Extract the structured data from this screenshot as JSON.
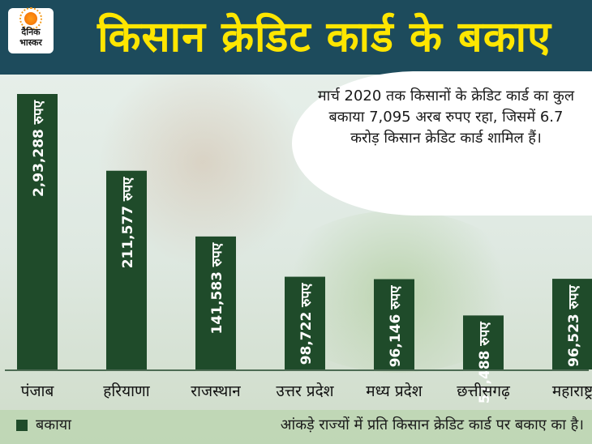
{
  "header": {
    "title": "किसान क्रेडिट कार्ड के बकाए",
    "logo_line1": "दैनिक",
    "logo_line2": "भास्कर"
  },
  "note": {
    "text": "मार्च 2020 तक किसानों के क्रेडिट कार्ड का कुल बकाया 7,095 अरब रुपए रहा, जिसमें 6.7 करोड़ किसान क्रेडिट कार्ड शामिल हैं।"
  },
  "colors": {
    "bar": "#1f4b2a",
    "header_bg": "#1d4b5c",
    "title": "#ffe600"
  },
  "chart_data": {
    "type": "bar",
    "title": "किसान क्रेडिट कार्ड के बकाए",
    "categories": [
      "पंजाब",
      "हरियाणा",
      "राजस्थान",
      "उत्तर प्रदेश",
      "मध्य प्रदेश",
      "छत्तीसगढ़",
      "महाराष्ट्र"
    ],
    "series": [
      {
        "name": "बकाया",
        "values": [
          293288,
          211577,
          141583,
          98722,
          96146,
          57488,
          96523
        ]
      }
    ],
    "data_labels": [
      "2,93,288 रुपए",
      "211,577 रुपए",
      "141,583 रुपए",
      "98,722 रुपए",
      "96,146 रुपए",
      "57,488 रुपए",
      "96,523 रुपए"
    ],
    "ylim": [
      0,
      320000
    ],
    "grid": false,
    "legend": "bottom-left"
  },
  "legend": {
    "label": "बकाया"
  },
  "footnote": "आंकड़े राज्यों में प्रति किसान क्रेडिट कार्ड पर बकाए का है।"
}
